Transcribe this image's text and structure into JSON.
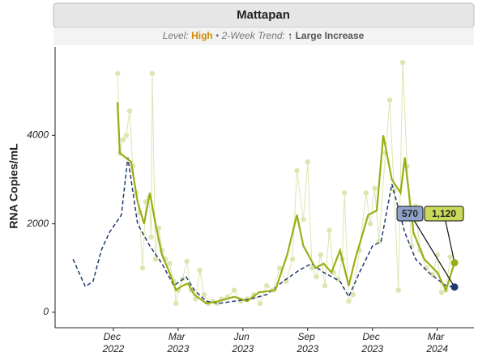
{
  "chart_data": {
    "type": "line",
    "title": "Mattapan",
    "subtitle": {
      "level_label": "Level:",
      "level": "High",
      "separator": "•",
      "trend_label": "2-Week Trend:",
      "arrow": "↑",
      "trend": "Large Increase",
      "level_color": "#d08c00"
    },
    "y_label": "RNA Copies/mL",
    "ylim": [
      -350,
      6000
    ],
    "yticks": [
      0,
      2000,
      4000
    ],
    "xlim": [
      -2.7,
      16.7
    ],
    "xticks": [
      {
        "value": 0,
        "label": "Dec 2022"
      },
      {
        "value": 3,
        "label": "Mar 2023"
      },
      {
        "value": 6,
        "label": "Jun 2023"
      },
      {
        "value": 9,
        "label": "Sep 2023"
      },
      {
        "value": 12,
        "label": "Dec 2023"
      },
      {
        "value": 15,
        "label": "Mar 2024"
      }
    ],
    "series": [
      {
        "kind": "points",
        "color": "#dde5b0",
        "x": [
          0.2,
          0.3,
          0.45,
          0.6,
          0.75,
          0.9,
          1.05,
          1.2,
          1.35,
          1.5,
          1.65,
          1.75,
          1.8,
          1.95,
          2.1,
          2.25,
          2.4,
          2.6,
          2.8,
          2.9,
          3.0,
          3.2,
          3.4,
          3.6,
          3.8,
          4.0,
          4.2,
          4.4,
          4.6,
          4.8,
          5.0,
          5.3,
          5.6,
          5.9,
          6.2,
          6.5,
          6.8,
          7.1,
          7.4,
          7.7,
          8.0,
          8.3,
          8.5,
          8.8,
          9.0,
          9.2,
          9.4,
          9.6,
          9.8,
          10.0,
          10.2,
          10.4,
          10.6,
          10.7,
          10.9,
          11.1,
          11.4,
          11.7,
          11.9,
          12.1,
          12.3,
          12.6,
          12.8,
          13.0,
          13.2,
          13.4,
          13.6,
          13.8,
          14.0,
          14.2,
          14.5,
          14.8,
          15.0,
          15.2,
          15.4,
          15.6
        ],
        "values": [
          5400,
          3600,
          3900,
          4000,
          4550,
          3300,
          2700,
          2250,
          1000,
          2500,
          2600,
          1700,
          5400,
          1200,
          1900,
          1400,
          1200,
          1100,
          700,
          200,
          500,
          750,
          1150,
          500,
          300,
          950,
          400,
          200,
          250,
          200,
          300,
          350,
          500,
          250,
          300,
          400,
          200,
          600,
          500,
          1000,
          700,
          1200,
          3200,
          2100,
          3400,
          1000,
          800,
          1300,
          600,
          1850,
          900,
          750,
          1200,
          2700,
          250,
          400,
          1400,
          2700,
          2000,
          2800,
          1600,
          3600,
          4800,
          2750,
          500,
          5650,
          3300,
          1500,
          2400,
          1400,
          1000,
          850,
          1300,
          450,
          500,
          1250
        ]
      },
      {
        "kind": "line",
        "style": "dashed",
        "color": "#1f3b6e",
        "x": [
          -1.87,
          -1.3,
          -0.94,
          -0.56,
          -0.19,
          0.37,
          0.67,
          1.12,
          1.69,
          2.25,
          2.8,
          3.37,
          3.75,
          4.3,
          4.87,
          5.6,
          6.37,
          7.1,
          7.87,
          8.6,
          9.18,
          9.74,
          10.5,
          10.9,
          11.4,
          12.0,
          12.4,
          12.9,
          13.5,
          14.0,
          14.6,
          15.4,
          15.8
        ],
        "values": [
          1200,
          580,
          700,
          1400,
          1800,
          2200,
          3500,
          2000,
          1500,
          1100,
          600,
          800,
          500,
          250,
          200,
          250,
          300,
          400,
          700,
          950,
          1100,
          900,
          700,
          350,
          900,
          1500,
          1600,
          2900,
          1800,
          1200,
          900,
          600,
          570
        ],
        "value_labels": [
          null,
          null,
          null,
          null,
          null,
          null,
          null,
          null,
          null,
          null,
          null,
          null,
          null,
          null,
          null,
          null,
          null,
          null,
          null,
          null,
          null,
          null,
          null,
          null,
          null,
          null,
          null,
          null,
          null,
          null,
          null,
          null,
          "570"
        ],
        "label_fill": "#8fa3c8"
      },
      {
        "kind": "line",
        "style": "solid",
        "color": "#9aae14",
        "x": [
          0.19,
          0.3,
          0.56,
          0.82,
          1.12,
          1.42,
          1.69,
          1.95,
          2.25,
          2.6,
          2.9,
          3.2,
          3.45,
          3.75,
          4.3,
          4.87,
          5.6,
          6.2,
          6.74,
          7.5,
          8.05,
          8.5,
          8.8,
          9.36,
          9.74,
          10.1,
          10.5,
          10.9,
          11.2,
          11.8,
          12.2,
          12.5,
          12.9,
          13.3,
          13.5,
          13.9,
          14.4,
          15.0,
          15.4,
          15.8
        ],
        "values": [
          4750,
          3600,
          3500,
          3400,
          2500,
          2000,
          2700,
          2000,
          1300,
          900,
          500,
          600,
          650,
          400,
          200,
          250,
          350,
          250,
          450,
          500,
          1300,
          2200,
          1500,
          1000,
          1100,
          900,
          1400,
          600,
          1200,
          2200,
          2300,
          4000,
          3000,
          2700,
          3500,
          1800,
          1200,
          900,
          500,
          1120
        ],
        "value_labels": [
          null,
          null,
          null,
          null,
          null,
          null,
          null,
          null,
          null,
          null,
          null,
          null,
          null,
          null,
          null,
          null,
          null,
          null,
          null,
          null,
          null,
          null,
          null,
          null,
          null,
          null,
          null,
          null,
          null,
          null,
          null,
          null,
          null,
          null,
          null,
          null,
          null,
          null,
          null,
          "1,120"
        ],
        "label_fill": "#c9d95a"
      }
    ]
  }
}
